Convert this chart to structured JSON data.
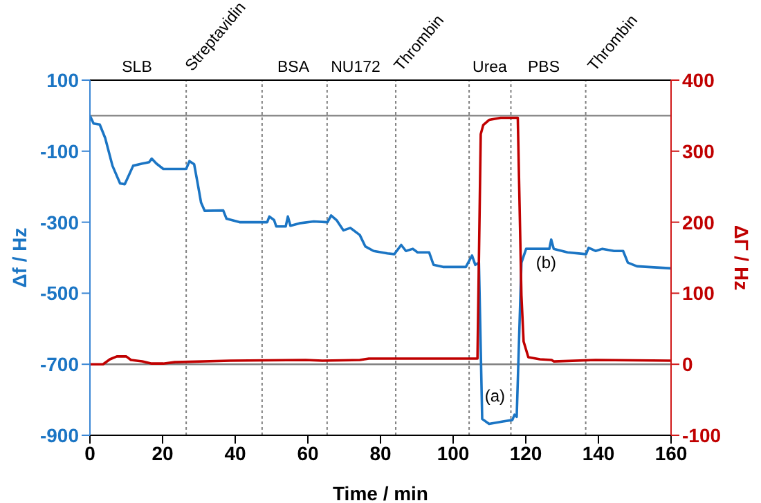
{
  "chart_data": {
    "type": "line",
    "xlabel": "Time / min",
    "ylabel": "Δf / Hz",
    "y2label": "ΔΓ / Hz",
    "xlim": [
      0,
      160
    ],
    "xticks": [
      0,
      20,
      40,
      60,
      80,
      100,
      120,
      140,
      160
    ],
    "ylim": [
      -900,
      100
    ],
    "yticks": [
      100,
      -100,
      -300,
      -500,
      -700,
      -900
    ],
    "y2lim": [
      -100,
      400
    ],
    "y2ticks": [
      -100,
      0,
      100,
      200,
      300,
      400
    ],
    "marker": "none",
    "line_style": "solid",
    "series": [
      {
        "color": "#1b75c4",
        "axis": "y",
        "x": [
          0,
          1,
          2.7,
          4.2,
          6.2,
          8.3,
          9.6,
          11.9,
          14.4,
          16.3,
          17,
          18.3,
          20.2,
          26.5,
          27.4,
          28.7,
          29.7,
          30.6,
          31.6,
          36.7,
          37.6,
          41.2,
          48.8,
          49.4,
          50.7,
          51.3,
          53.9,
          54.5,
          55.2,
          57.7,
          61.6,
          65.4,
          66.4,
          67.9,
          69.8,
          71.7,
          74.3,
          75.8,
          78.1,
          81.9,
          83.8,
          85.7,
          87,
          88.9,
          90.2,
          93.4,
          94.6,
          97.2,
          103.5,
          105.2,
          106.1,
          107.1,
          108,
          109.9,
          113.7,
          116.3,
          116.9,
          117.5,
          118.8,
          120.1,
          126.5,
          127,
          127.7,
          131.5,
          136.6,
          137.3,
          139.2,
          141.1,
          144.3,
          146.8,
          148.1,
          150.6,
          160
        ],
        "values": [
          0,
          -22,
          -25,
          -63,
          -141,
          -191,
          -193,
          -141,
          -135,
          -131,
          -121,
          -135,
          -150,
          -150,
          -128,
          -137,
          -193,
          -245,
          -268,
          -267,
          -290,
          -300,
          -300,
          -284,
          -294,
          -312,
          -312,
          -284,
          -310,
          -303,
          -298,
          -300,
          -281,
          -294,
          -323,
          -316,
          -336,
          -368,
          -381,
          -388,
          -390,
          -364,
          -381,
          -375,
          -385,
          -385,
          -420,
          -426,
          -426,
          -394,
          -420,
          -414,
          -854,
          -868,
          -861,
          -857,
          -842,
          -848,
          -414,
          -375,
          -375,
          -349,
          -375,
          -385,
          -390,
          -372,
          -381,
          -375,
          -381,
          -381,
          -414,
          -424,
          -430
        ]
      },
      {
        "color": "#c00000",
        "axis": "y2",
        "x": [
          0,
          3.6,
          5.5,
          7.4,
          10,
          11.3,
          14.4,
          17,
          20.2,
          23.4,
          38.6,
          59.4,
          64,
          74.3,
          76.8,
          78.1,
          106.7,
          107.6,
          108.3,
          109.9,
          113.1,
          117.8,
          118.8,
          119.4,
          120.7,
          123.9,
          127.1,
          127.7,
          139.2,
          160
        ],
        "values": [
          0,
          0,
          7,
          11,
          11,
          6,
          4,
          1,
          1,
          3,
          5,
          6,
          5,
          6,
          8,
          8,
          8,
          324,
          337,
          344,
          347,
          347,
          97,
          32,
          10,
          7,
          6,
          4,
          6,
          5
        ]
      }
    ],
    "ref_lines": [
      {
        "axis": "y2",
        "value": 350,
        "color": "#808080"
      },
      {
        "axis": "y",
        "value": -700,
        "color": "#808080"
      },
      {
        "axis": "x",
        "value": 26.5,
        "color": "#808080",
        "line_style": "dotted"
      },
      {
        "axis": "x",
        "value": 47.4,
        "color": "#808080",
        "line_style": "dotted"
      },
      {
        "axis": "x",
        "value": 65.3,
        "color": "#808080",
        "line_style": "dotted"
      },
      {
        "axis": "x",
        "value": 84.2,
        "color": "#808080",
        "line_style": "dotted"
      },
      {
        "axis": "x",
        "value": 104.4,
        "color": "#808080",
        "line_style": "dotted"
      },
      {
        "axis": "x",
        "value": 115.9,
        "color": "#808080",
        "line_style": "dotted"
      },
      {
        "axis": "x",
        "value": 136.5,
        "color": "#808080",
        "line_style": "dotted"
      }
    ],
    "annotations": [
      "SLB",
      "Streptavidin",
      "BSA",
      "NU172",
      "Thrombin",
      "Urea",
      "PBS",
      "Thrombin",
      {
        "text": "(a)",
        "x": 111.5,
        "y": -866
      },
      {
        "text": "(b)",
        "x": 119,
        "y": -414
      }
    ]
  }
}
